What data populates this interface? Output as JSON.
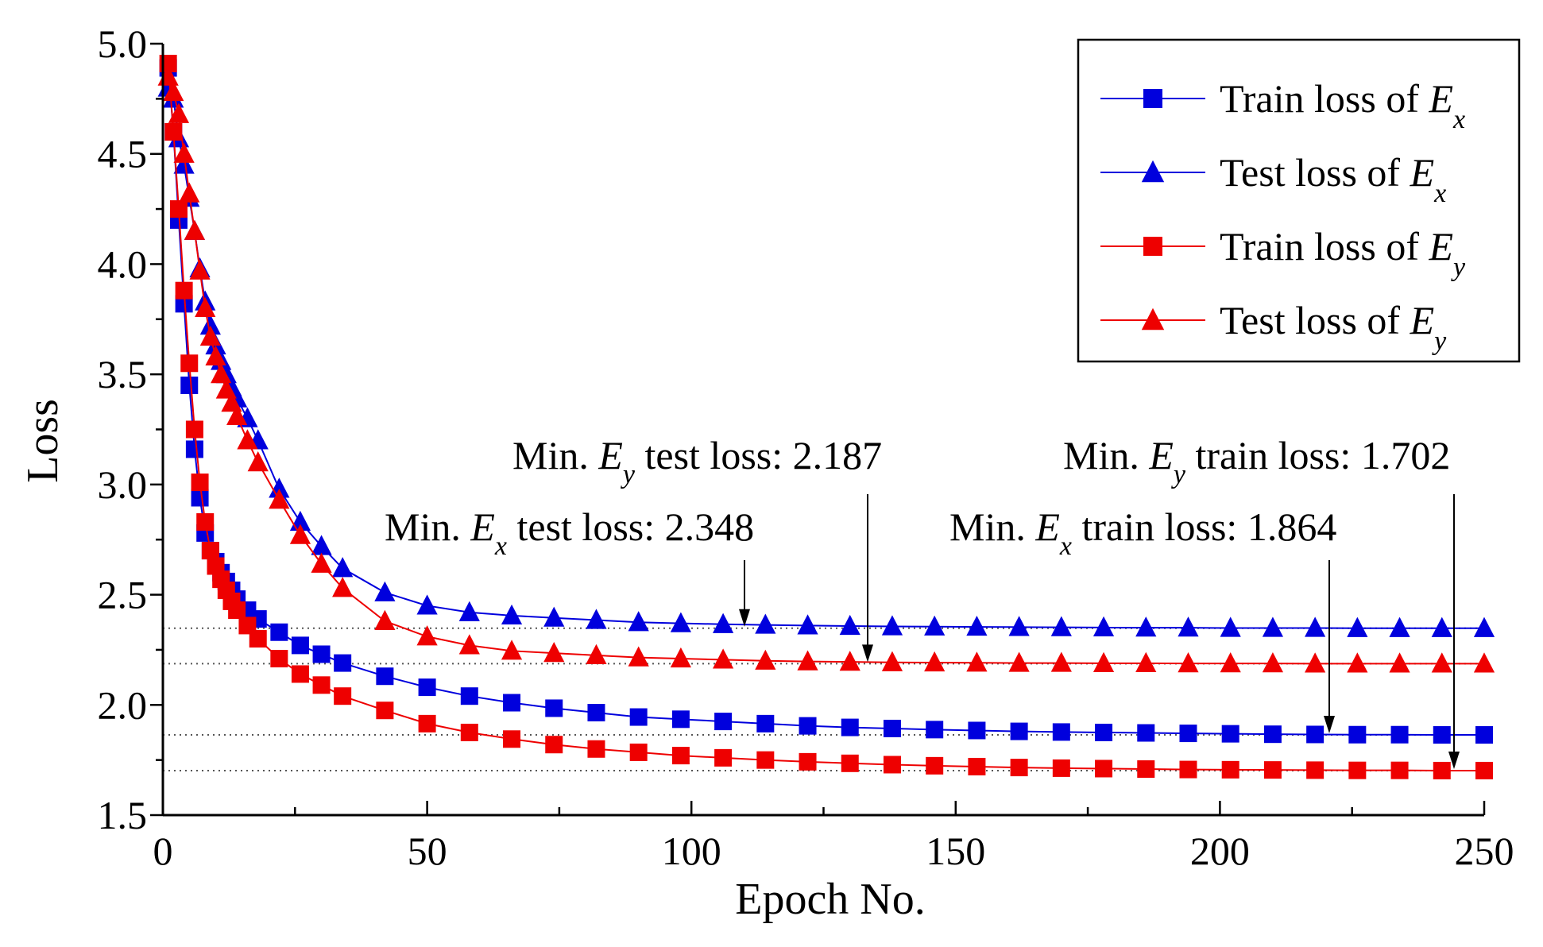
{
  "chart_data": {
    "type": "line",
    "xlabel": "Epoch No.",
    "ylabel": "Loss",
    "xlim": [
      0,
      250
    ],
    "ylim": [
      1.5,
      5.0
    ],
    "x_ticks": [
      0,
      50,
      100,
      150,
      200,
      250
    ],
    "x_tick_labels": [
      "0",
      "50",
      "100",
      "150",
      "200",
      "250"
    ],
    "y_ticks": [
      1.5,
      2.0,
      2.5,
      3.0,
      3.5,
      4.0,
      4.5,
      5.0
    ],
    "y_tick_labels": [
      "1.5",
      "2.0",
      "2.5",
      "3.0",
      "3.5",
      "4.0",
      "4.5",
      "5.0"
    ],
    "legend_position": "top-right",
    "series": [
      {
        "name": "Train loss of E_x",
        "legend_prefix": "Train loss of ",
        "legend_var": "E",
        "legend_sub": "x",
        "color": "#0000dd",
        "marker": "square",
        "x": [
          1,
          2,
          3,
          4,
          5,
          6,
          7,
          8,
          9,
          10,
          11,
          12,
          13,
          14,
          16,
          18,
          22,
          26,
          30,
          34,
          42,
          50,
          58,
          66,
          74,
          82,
          90,
          98,
          106,
          114,
          122,
          130,
          138,
          146,
          154,
          162,
          170,
          178,
          186,
          194,
          202,
          210,
          218,
          226,
          234,
          242,
          250
        ],
        "values": [
          4.89,
          4.6,
          4.2,
          3.82,
          3.45,
          3.16,
          2.94,
          2.78,
          2.7,
          2.65,
          2.6,
          2.56,
          2.52,
          2.48,
          2.43,
          2.39,
          2.33,
          2.27,
          2.23,
          2.19,
          2.13,
          2.08,
          2.04,
          2.01,
          1.985,
          1.965,
          1.945,
          1.935,
          1.925,
          1.915,
          1.905,
          1.898,
          1.893,
          1.888,
          1.884,
          1.88,
          1.877,
          1.875,
          1.873,
          1.871,
          1.869,
          1.867,
          1.866,
          1.865,
          1.865,
          1.864,
          1.864
        ]
      },
      {
        "name": "Test loss of E_x",
        "legend_prefix": "Test loss of ",
        "legend_var": "E",
        "legend_sub": "x",
        "color": "#0000dd",
        "marker": "triangle",
        "x": [
          1,
          2,
          3,
          4,
          5,
          6,
          7,
          8,
          9,
          10,
          11,
          12,
          13,
          14,
          16,
          18,
          22,
          26,
          30,
          34,
          42,
          50,
          58,
          66,
          74,
          82,
          90,
          98,
          106,
          114,
          122,
          130,
          138,
          146,
          154,
          162,
          170,
          178,
          186,
          194,
          202,
          210,
          218,
          226,
          234,
          242,
          250
        ],
        "values": [
          4.8,
          4.75,
          4.57,
          4.45,
          4.3,
          4.15,
          3.98,
          3.83,
          3.72,
          3.63,
          3.56,
          3.5,
          3.44,
          3.39,
          3.3,
          3.2,
          2.98,
          2.83,
          2.72,
          2.62,
          2.51,
          2.45,
          2.42,
          2.405,
          2.395,
          2.385,
          2.375,
          2.37,
          2.366,
          2.363,
          2.36,
          2.358,
          2.356,
          2.355,
          2.354,
          2.353,
          2.352,
          2.351,
          2.35,
          2.35,
          2.349,
          2.349,
          2.349,
          2.348,
          2.348,
          2.348,
          2.348
        ]
      },
      {
        "name": "Train loss of E_y",
        "legend_prefix": "Train loss of ",
        "legend_var": "E",
        "legend_sub": "y",
        "color": "#ee0000",
        "marker": "square",
        "x": [
          1,
          2,
          3,
          4,
          5,
          6,
          7,
          8,
          9,
          10,
          11,
          12,
          13,
          14,
          16,
          18,
          22,
          26,
          30,
          34,
          42,
          50,
          58,
          66,
          74,
          82,
          90,
          98,
          106,
          114,
          122,
          130,
          138,
          146,
          154,
          162,
          170,
          178,
          186,
          194,
          202,
          210,
          218,
          226,
          234,
          242,
          250
        ],
        "values": [
          4.91,
          4.6,
          4.25,
          3.88,
          3.55,
          3.25,
          3.01,
          2.83,
          2.7,
          2.63,
          2.57,
          2.52,
          2.47,
          2.43,
          2.36,
          2.3,
          2.21,
          2.14,
          2.09,
          2.04,
          1.975,
          1.915,
          1.875,
          1.845,
          1.82,
          1.8,
          1.785,
          1.77,
          1.76,
          1.75,
          1.742,
          1.735,
          1.729,
          1.724,
          1.72,
          1.716,
          1.713,
          1.711,
          1.709,
          1.707,
          1.706,
          1.705,
          1.704,
          1.703,
          1.703,
          1.702,
          1.702
        ]
      },
      {
        "name": "Test loss of E_y",
        "legend_prefix": "Test loss of ",
        "legend_var": "E",
        "legend_sub": "y",
        "color": "#ee0000",
        "marker": "triangle",
        "x": [
          1,
          2,
          3,
          4,
          5,
          6,
          7,
          8,
          9,
          10,
          11,
          12,
          13,
          14,
          16,
          18,
          22,
          26,
          30,
          34,
          42,
          50,
          58,
          66,
          74,
          82,
          90,
          98,
          106,
          114,
          122,
          130,
          138,
          146,
          154,
          162,
          170,
          178,
          186,
          194,
          202,
          210,
          218,
          226,
          234,
          242,
          250
        ],
        "values": [
          4.85,
          4.78,
          4.68,
          4.5,
          4.32,
          4.15,
          3.97,
          3.8,
          3.67,
          3.58,
          3.5,
          3.43,
          3.37,
          3.31,
          3.2,
          3.1,
          2.93,
          2.77,
          2.64,
          2.53,
          2.38,
          2.31,
          2.27,
          2.245,
          2.235,
          2.225,
          2.215,
          2.21,
          2.205,
          2.2,
          2.197,
          2.195,
          2.193,
          2.192,
          2.191,
          2.19,
          2.19,
          2.189,
          2.189,
          2.188,
          2.188,
          2.188,
          2.187,
          2.187,
          2.187,
          2.187,
          2.187
        ]
      }
    ],
    "reference_lines": [
      2.348,
      2.187,
      1.864,
      1.702
    ],
    "annotations": [
      {
        "prefix": "Min. ",
        "var": "E",
        "sub": "y",
        "suffix": " test loss: 2.187",
        "target_x": 134,
        "target_y": 2.187
      },
      {
        "prefix": "Min. ",
        "var": "E",
        "sub": "x",
        "suffix": " test loss: 2.348",
        "target_x": 110,
        "target_y": 2.348
      },
      {
        "prefix": "Min. ",
        "var": "E",
        "sub": "y",
        "suffix": " train loss: 1.702",
        "target_x": 246,
        "target_y": 1.702
      },
      {
        "prefix": "Min. ",
        "var": "E",
        "sub": "x",
        "suffix": " train loss: 1.864",
        "target_x": 222,
        "target_y": 1.864
      }
    ]
  }
}
